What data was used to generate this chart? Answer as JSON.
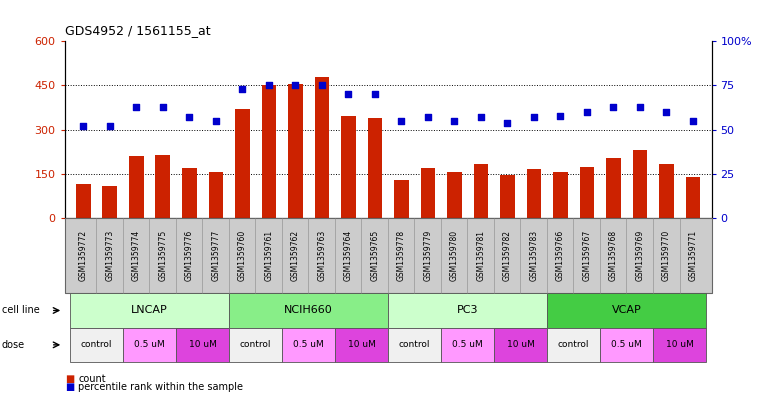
{
  "title": "GDS4952 / 1561155_at",
  "samples": [
    "GSM1359772",
    "GSM1359773",
    "GSM1359774",
    "GSM1359775",
    "GSM1359776",
    "GSM1359777",
    "GSM1359760",
    "GSM1359761",
    "GSM1359762",
    "GSM1359763",
    "GSM1359764",
    "GSM1359765",
    "GSM1359778",
    "GSM1359779",
    "GSM1359780",
    "GSM1359781",
    "GSM1359782",
    "GSM1359783",
    "GSM1359766",
    "GSM1359767",
    "GSM1359768",
    "GSM1359769",
    "GSM1359770",
    "GSM1359771"
  ],
  "counts": [
    115,
    110,
    210,
    215,
    170,
    155,
    370,
    450,
    455,
    480,
    345,
    340,
    130,
    170,
    155,
    185,
    145,
    165,
    155,
    175,
    205,
    230,
    185,
    140
  ],
  "percentile_ranks": [
    52,
    52,
    63,
    63,
    57,
    55,
    73,
    75,
    75,
    75,
    70,
    70,
    55,
    57,
    55,
    57,
    54,
    57,
    58,
    60,
    63,
    63,
    60,
    55
  ],
  "bar_color": "#cc2200",
  "dot_color": "#0000cc",
  "cell_lines": [
    {
      "name": "LNCAP",
      "start": 0,
      "end": 6,
      "color": "#ccffcc"
    },
    {
      "name": "NCIH660",
      "start": 6,
      "end": 12,
      "color": "#88ee88"
    },
    {
      "name": "PC3",
      "start": 12,
      "end": 18,
      "color": "#ccffcc"
    },
    {
      "name": "VCAP",
      "start": 18,
      "end": 24,
      "color": "#44cc44"
    }
  ],
  "doses": [
    {
      "name": "control",
      "start": 0,
      "end": 2,
      "color": "#f0f0f0"
    },
    {
      "name": "0.5 uM",
      "start": 2,
      "end": 4,
      "color": "#ff99ff"
    },
    {
      "name": "10 uM",
      "start": 4,
      "end": 6,
      "color": "#dd44dd"
    },
    {
      "name": "control",
      "start": 6,
      "end": 8,
      "color": "#f0f0f0"
    },
    {
      "name": "0.5 uM",
      "start": 8,
      "end": 10,
      "color": "#ff99ff"
    },
    {
      "name": "10 uM",
      "start": 10,
      "end": 12,
      "color": "#dd44dd"
    },
    {
      "name": "control",
      "start": 12,
      "end": 14,
      "color": "#f0f0f0"
    },
    {
      "name": "0.5 uM",
      "start": 14,
      "end": 16,
      "color": "#ff99ff"
    },
    {
      "name": "10 uM",
      "start": 16,
      "end": 18,
      "color": "#dd44dd"
    },
    {
      "name": "control",
      "start": 18,
      "end": 20,
      "color": "#f0f0f0"
    },
    {
      "name": "0.5 uM",
      "start": 20,
      "end": 22,
      "color": "#ff99ff"
    },
    {
      "name": "10 uM",
      "start": 22,
      "end": 24,
      "color": "#dd44dd"
    }
  ],
  "ylim_left": [
    0,
    600
  ],
  "ylim_right": [
    0,
    100
  ],
  "yticks_left": [
    0,
    150,
    300,
    450,
    600
  ],
  "yticks_right": [
    0,
    25,
    50,
    75,
    100
  ],
  "bar_width": 0.55,
  "bg_color": "#ffffff",
  "ax_color_left": "#cc2200",
  "ax_color_right": "#0000cc",
  "sample_row_color": "#cccccc",
  "cell_line_label": "cell line",
  "dose_label": "dose",
  "legend_count_label": "count",
  "legend_pct_label": "percentile rank within the sample"
}
